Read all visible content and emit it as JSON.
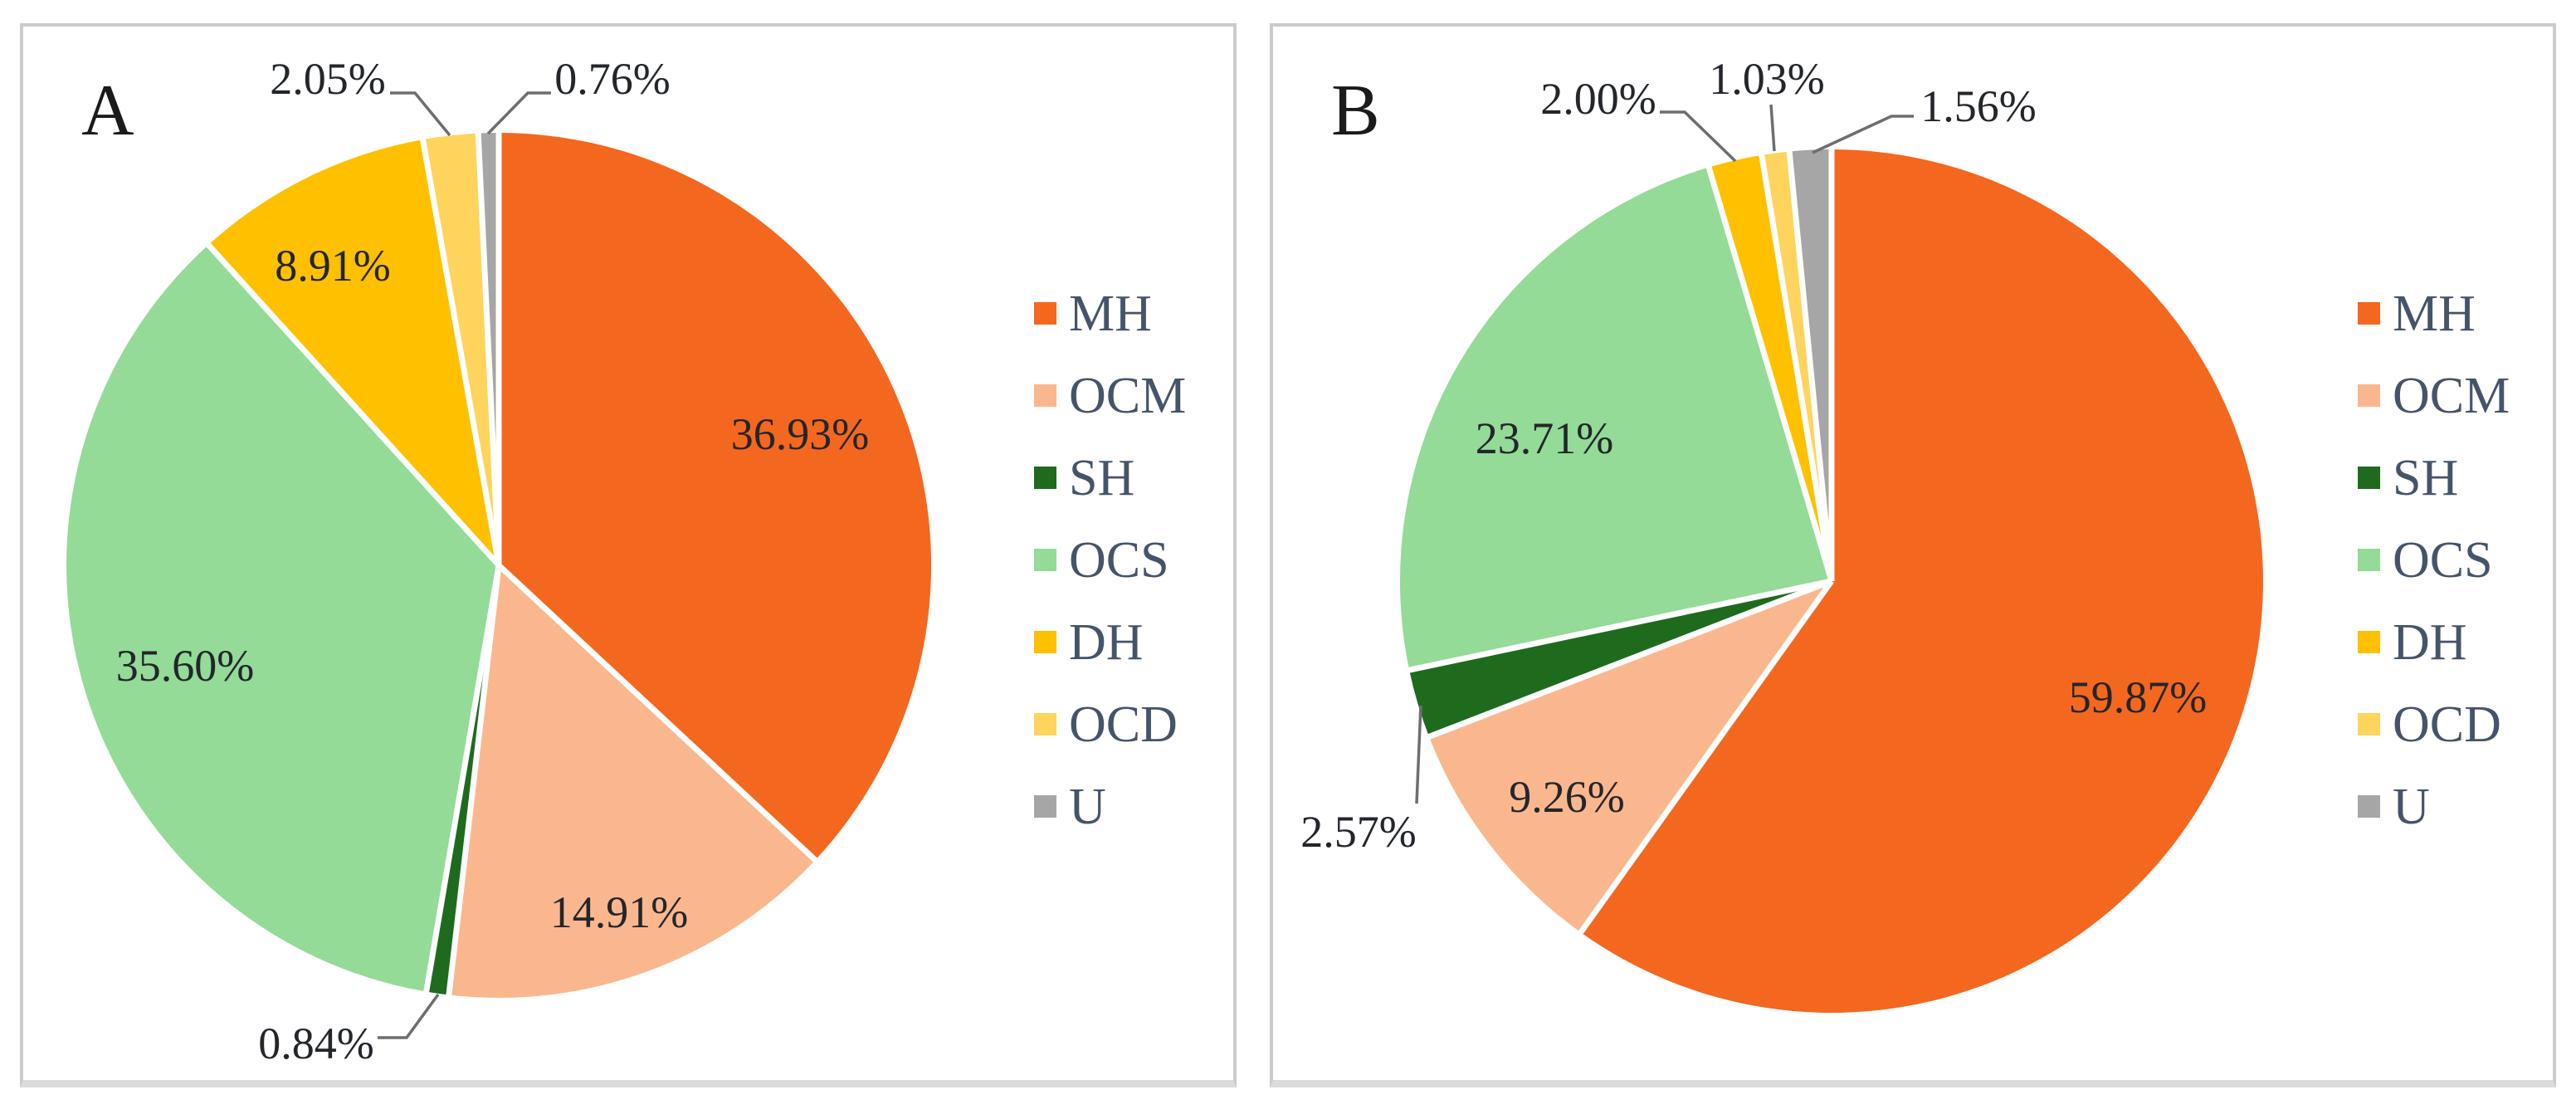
{
  "figure": {
    "background_color": "#FFFFFF",
    "panel_border_color": "#CBCBCB",
    "panel_shadow_color": "#DBDBDB",
    "label_text_color": "#23262B",
    "legend_text_color": "#44546A",
    "leader_line_color": "#6E6E6E"
  },
  "chart_data": [
    {
      "type": "pie",
      "panel_label": "A",
      "start_angle_deg": 0,
      "direction": "clockwise",
      "legend_position": "right",
      "slices": [
        {
          "name": "MH",
          "value_pct": 36.93,
          "label": "36.93%",
          "color": "#F4671F",
          "label_placement": "inside"
        },
        {
          "name": "OCM",
          "value_pct": 14.91,
          "label": "14.91%",
          "color": "#FAB78E",
          "label_placement": "inside"
        },
        {
          "name": "SH",
          "value_pct": 0.84,
          "label": "0.84%",
          "color": "#1E6B1E",
          "label_placement": "outside"
        },
        {
          "name": "OCS",
          "value_pct": 35.6,
          "label": "35.60%",
          "color": "#93DB97",
          "label_placement": "inside"
        },
        {
          "name": "DH",
          "value_pct": 8.91,
          "label": "8.91%",
          "color": "#FFC000",
          "label_placement": "inside"
        },
        {
          "name": "OCD",
          "value_pct": 2.05,
          "label": "2.05%",
          "color": "#FFD45C",
          "label_placement": "outside"
        },
        {
          "name": "U",
          "value_pct": 0.76,
          "label": "0.76%",
          "color": "#A6A6A6",
          "label_placement": "outside"
        }
      ]
    },
    {
      "type": "pie",
      "panel_label": "B",
      "start_angle_deg": 0,
      "direction": "clockwise",
      "legend_position": "right",
      "slices": [
        {
          "name": "MH",
          "value_pct": 59.87,
          "label": "59.87%",
          "color": "#F4671F",
          "label_placement": "inside"
        },
        {
          "name": "OCM",
          "value_pct": 9.26,
          "label": "9.26%",
          "color": "#FAB78E",
          "label_placement": "inside"
        },
        {
          "name": "SH",
          "value_pct": 2.57,
          "label": "2.57%",
          "color": "#1E6B1E",
          "label_placement": "outside"
        },
        {
          "name": "OCS",
          "value_pct": 23.71,
          "label": "23.71%",
          "color": "#93DB97",
          "label_placement": "inside"
        },
        {
          "name": "DH",
          "value_pct": 2.0,
          "label": "2.00%",
          "color": "#FFC000",
          "label_placement": "outside"
        },
        {
          "name": "OCD",
          "value_pct": 1.03,
          "label": "1.03%",
          "color": "#FFD45C",
          "label_placement": "outside"
        },
        {
          "name": "U",
          "value_pct": 1.56,
          "label": "1.56%",
          "color": "#A6A6A6",
          "label_placement": "outside"
        }
      ]
    }
  ]
}
